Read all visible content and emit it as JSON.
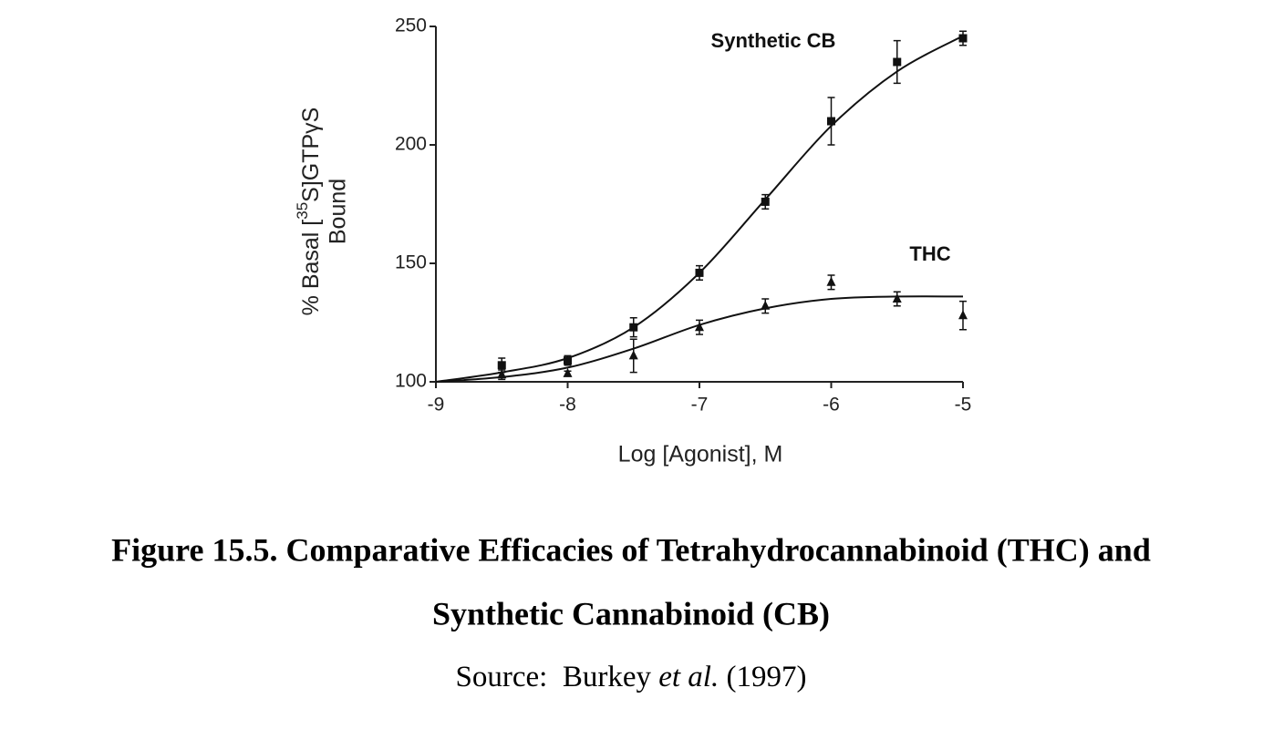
{
  "chart_data": {
    "type": "line",
    "x_label": "Log [Agonist], M",
    "y_label": {
      "line1_start": "% Basal [",
      "superscript": "35",
      "line1_end": "S]GTPγS",
      "line2": "Bound"
    },
    "xlim": [
      -9,
      -5
    ],
    "xticks": [
      -9,
      -8,
      -7,
      -6,
      -5
    ],
    "ylim": [
      100,
      250
    ],
    "yticks": [
      100,
      150,
      200,
      250
    ],
    "x": [
      -8.5,
      -8,
      -7.5,
      -7,
      -6.5,
      -6,
      -5.5,
      -5
    ],
    "fit_x": [
      -9,
      -8.5,
      -8,
      -7.5,
      -7,
      -6.5,
      -6,
      -5.5,
      -5
    ],
    "series": [
      {
        "name": "Synthetic CB",
        "color": "#111111",
        "marker": "square",
        "values": [
          107,
          109,
          123,
          146,
          176,
          210,
          235,
          245
        ],
        "errors": [
          3,
          2,
          4,
          3,
          3,
          10,
          9,
          3
        ],
        "fit_values": [
          100,
          104,
          110,
          123,
          146,
          177,
          208,
          231,
          246
        ]
      },
      {
        "name": "THC",
        "color": "#111111",
        "marker": "triangle",
        "values": [
          103,
          103.5,
          111,
          123,
          132,
          142,
          135,
          128
        ],
        "errors": [
          2,
          1,
          7,
          3,
          3,
          3,
          3,
          6
        ],
        "fit_values": [
          100,
          102,
          106,
          114,
          124,
          131,
          135,
          136,
          136
        ]
      }
    ]
  },
  "caption": {
    "title_lines": [
      "Figure 15.5. Comparative Efficacies of Tetrahydrocannabinoid (THC) and",
      "Synthetic Cannabinoid (CB)"
    ],
    "source_start": "Source:  Burkey ",
    "source_italic": "et al.",
    "source_end": " (1997)"
  }
}
